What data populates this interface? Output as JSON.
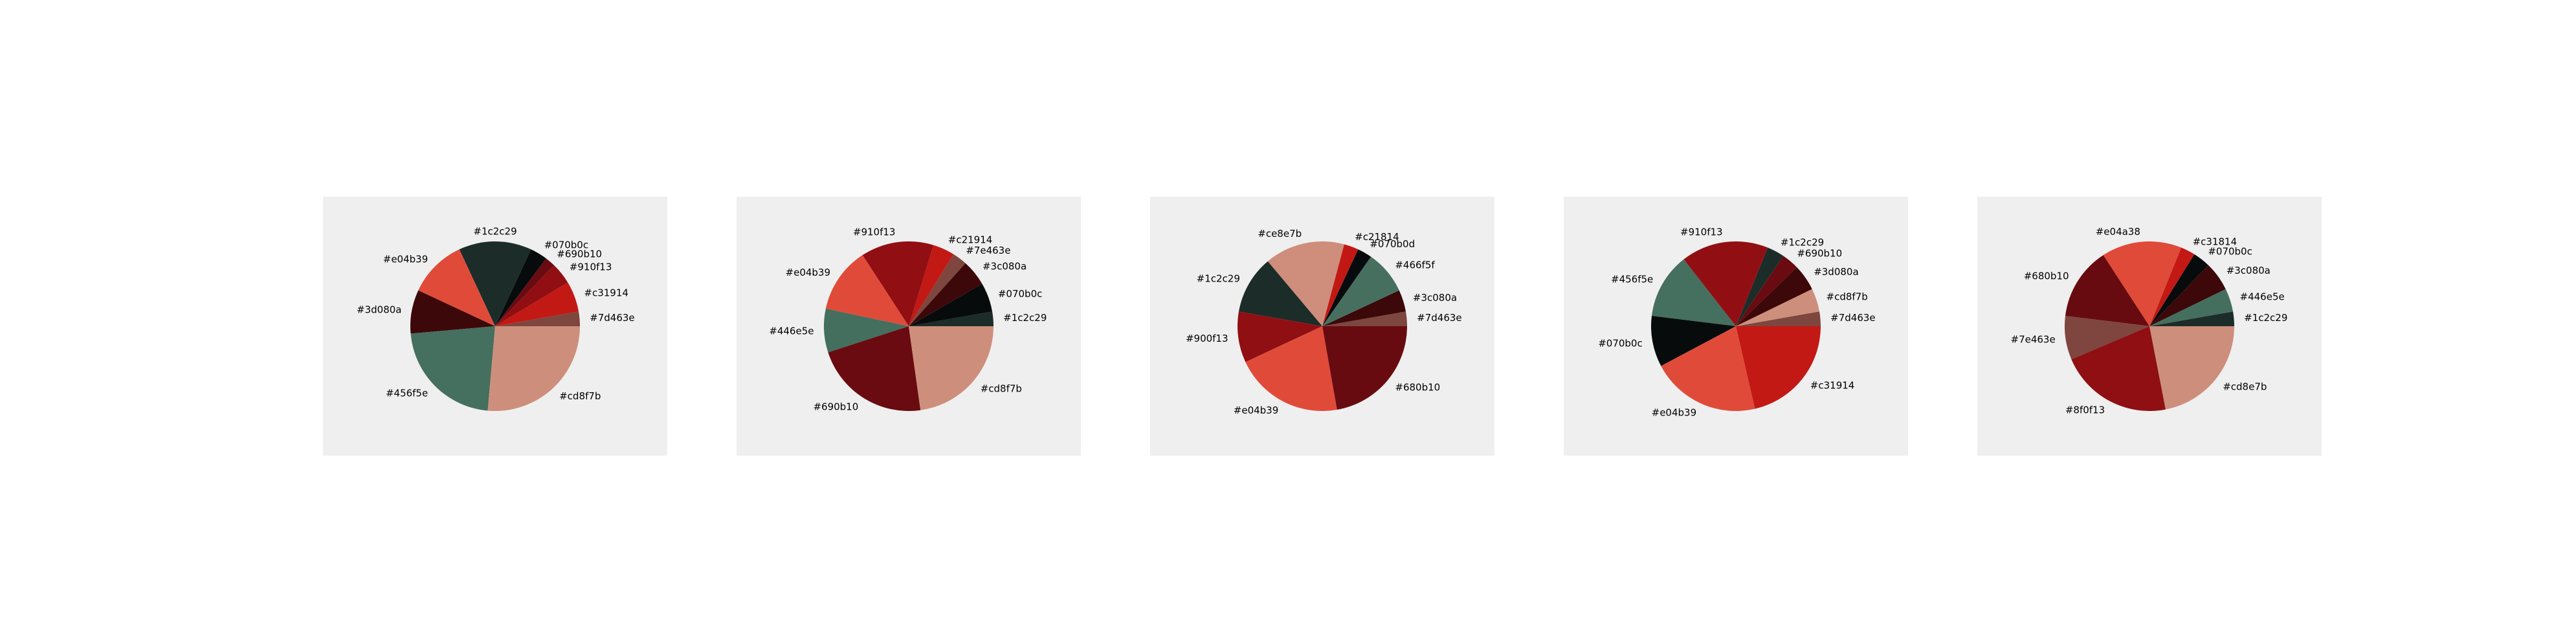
{
  "chart_data": [
    {
      "type": "pie",
      "slices": [
        {
          "label": "#7d463e",
          "value": 2.78,
          "color": "#7d463e"
        },
        {
          "label": "#c31914",
          "value": 5.83,
          "color": "#c31914"
        },
        {
          "label": "#910f13",
          "value": 4.17,
          "color": "#910f13"
        },
        {
          "label": "#690b10",
          "value": 1.94,
          "color": "#690b10"
        },
        {
          "label": "#070b0c",
          "value": 3.33,
          "color": "#070b0c"
        },
        {
          "label": "#1c2c29",
          "value": 13.89,
          "color": "#1c2c29"
        },
        {
          "label": "#e04b39",
          "value": 11.11,
          "color": "#e04b39"
        },
        {
          "label": "#3d080a",
          "value": 8.33,
          "color": "#3d080a"
        },
        {
          "label": "#456f5e",
          "value": 22.22,
          "color": "#456f5e"
        },
        {
          "label": "#cd8f7b",
          "value": 26.39,
          "color": "#cd8f7b"
        }
      ]
    },
    {
      "type": "pie",
      "slices": [
        {
          "label": "#1c2c29",
          "value": 2.78,
          "color": "#1c2c29"
        },
        {
          "label": "#070b0c",
          "value": 5.56,
          "color": "#070b0c"
        },
        {
          "label": "#3c080a",
          "value": 5.0,
          "color": "#3c080a"
        },
        {
          "label": "#7e463e",
          "value": 2.78,
          "color": "#7e463e"
        },
        {
          "label": "#c21914",
          "value": 4.17,
          "color": "#c21914"
        },
        {
          "label": "#910f13",
          "value": 13.89,
          "color": "#910f13"
        },
        {
          "label": "#e04b39",
          "value": 12.5,
          "color": "#e04b39"
        },
        {
          "label": "#446e5e",
          "value": 8.33,
          "color": "#446e5e"
        },
        {
          "label": "#690b10",
          "value": 22.22,
          "color": "#690b10"
        },
        {
          "label": "#cd8f7b",
          "value": 22.78,
          "color": "#cd8f7b"
        }
      ]
    },
    {
      "type": "pie",
      "slices": [
        {
          "label": "#7d463e",
          "value": 2.78,
          "color": "#7d463e"
        },
        {
          "label": "#3c080a",
          "value": 4.17,
          "color": "#3c080a"
        },
        {
          "label": "#466f5f",
          "value": 8.33,
          "color": "#466f5f"
        },
        {
          "label": "#070b0d",
          "value": 2.78,
          "color": "#070b0d"
        },
        {
          "label": "#c21814",
          "value": 2.78,
          "color": "#c21814"
        },
        {
          "label": "#ce8e7b",
          "value": 15.28,
          "color": "#ce8e7b"
        },
        {
          "label": "#1c2c29",
          "value": 11.11,
          "color": "#1c2c29"
        },
        {
          "label": "#900f13",
          "value": 9.72,
          "color": "#900f13"
        },
        {
          "label": "#e04b39",
          "value": 20.83,
          "color": "#e04b39"
        },
        {
          "label": "#680b10",
          "value": 22.22,
          "color": "#680b10"
        }
      ]
    },
    {
      "type": "pie",
      "slices": [
        {
          "label": "#7d463e",
          "value": 2.78,
          "color": "#7d463e"
        },
        {
          "label": "#cd8f7b",
          "value": 4.44,
          "color": "#cd8f7b"
        },
        {
          "label": "#3d080a",
          "value": 5.0,
          "color": "#3d080a"
        },
        {
          "label": "#690b10",
          "value": 3.33,
          "color": "#690b10"
        },
        {
          "label": "#1c2c29",
          "value": 3.33,
          "color": "#1c2c29"
        },
        {
          "label": "#910f13",
          "value": 16.67,
          "color": "#910f13"
        },
        {
          "label": "#456f5e",
          "value": 12.5,
          "color": "#456f5e"
        },
        {
          "label": "#070b0c",
          "value": 9.72,
          "color": "#070b0c"
        },
        {
          "label": "#e04b39",
          "value": 20.83,
          "color": "#e04b39"
        },
        {
          "label": "#c31914",
          "value": 21.39,
          "color": "#c31914"
        }
      ]
    },
    {
      "type": "pie",
      "slices": [
        {
          "label": "#1c2c29",
          "value": 2.78,
          "color": "#1c2c29"
        },
        {
          "label": "#446e5e",
          "value": 4.44,
          "color": "#446e5e"
        },
        {
          "label": "#3c080a",
          "value": 5.56,
          "color": "#3c080a"
        },
        {
          "label": "#070b0c",
          "value": 3.33,
          "color": "#070b0c"
        },
        {
          "label": "#c31814",
          "value": 2.78,
          "color": "#c31814"
        },
        {
          "label": "#e04a38",
          "value": 15.28,
          "color": "#e04a38"
        },
        {
          "label": "#680b10",
          "value": 13.89,
          "color": "#680b10"
        },
        {
          "label": "#7e463e",
          "value": 8.33,
          "color": "#7e463e"
        },
        {
          "label": "#8f0f13",
          "value": 21.67,
          "color": "#8f0f13"
        },
        {
          "label": "#cd8e7b",
          "value": 21.94,
          "color": "#cd8e7b"
        }
      ]
    }
  ]
}
